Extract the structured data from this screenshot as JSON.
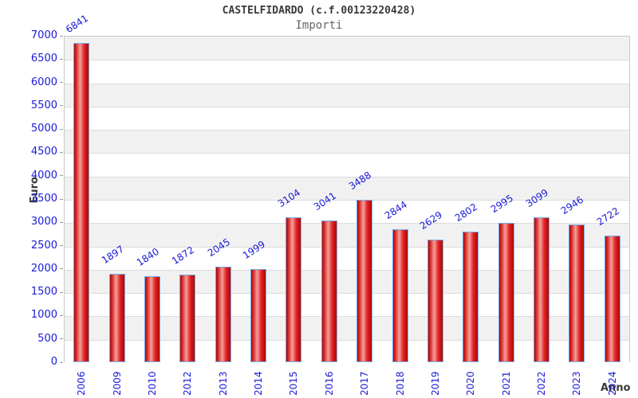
{
  "header": {
    "title": "CASTELFIDARDO (c.f.00123220428)",
    "subtitle": "Importi"
  },
  "chart_data": {
    "type": "bar",
    "title": "CASTELFIDARDO (c.f.00123220428)",
    "subtitle": "Importi",
    "categories": [
      "2006",
      "2009",
      "2010",
      "2012",
      "2013",
      "2014",
      "2015",
      "2016",
      "2017",
      "2018",
      "2019",
      "2020",
      "2021",
      "2022",
      "2023",
      "2024"
    ],
    "values": [
      6841,
      1897,
      1840,
      1872,
      2045,
      1999,
      3104,
      3041,
      3488,
      2844,
      2629,
      2802,
      2995,
      3099,
      2946,
      2722
    ],
    "xlabel": "Anno",
    "ylabel": "Euro",
    "ylim": [
      0,
      7000
    ],
    "ytick_step": 500,
    "grid": "horizontal-bands-alternating",
    "legend": "none",
    "colors": {
      "bar_gradient": [
        "#a50808",
        "#e03434",
        "#f2a19c",
        "#e22222",
        "#ae0606"
      ],
      "bar_border": "#74aae8",
      "tick_label": "#1a1ad6",
      "value_label": "#1a1ad6",
      "axis_title": "#3a3a3a",
      "band_gray": "#f1f1f1",
      "band_white": "#ffffff",
      "gridline": "#dcdcdc",
      "plot_border": "#c9c9c9"
    }
  }
}
